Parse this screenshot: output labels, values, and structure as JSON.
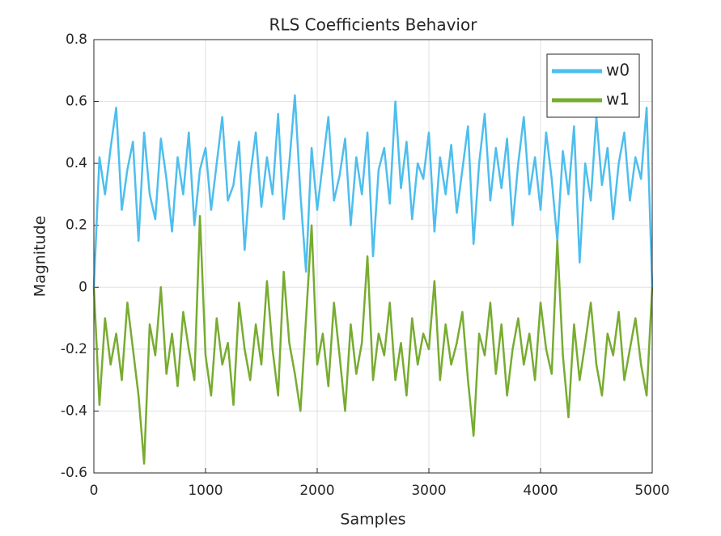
{
  "chart_data": {
    "type": "line",
    "title": "RLS Coefficients Behavior",
    "xlabel": "Samples",
    "ylabel": "Magnitude",
    "x": [
      0,
      50,
      100,
      150,
      200,
      250,
      300,
      350,
      400,
      450,
      500,
      550,
      600,
      650,
      700,
      750,
      800,
      850,
      900,
      950,
      1000,
      1050,
      1100,
      1150,
      1200,
      1250,
      1300,
      1350,
      1400,
      1450,
      1500,
      1550,
      1600,
      1650,
      1700,
      1750,
      1800,
      1850,
      1900,
      1950,
      2000,
      2050,
      2100,
      2150,
      2200,
      2250,
      2300,
      2350,
      2400,
      2450,
      2500,
      2550,
      2600,
      2650,
      2700,
      2750,
      2800,
      2850,
      2900,
      2950,
      3000,
      3050,
      3100,
      3150,
      3200,
      3250,
      3300,
      3350,
      3400,
      3450,
      3500,
      3550,
      3600,
      3650,
      3700,
      3750,
      3800,
      3850,
      3900,
      3950,
      4000,
      4050,
      4100,
      4150,
      4200,
      4250,
      4300,
      4350,
      4400,
      4450,
      4500,
      4550,
      4600,
      4650,
      4700,
      4750,
      4800,
      4850,
      4900,
      4950,
      5000
    ],
    "series": [
      {
        "name": "w0",
        "color": "#4dbeee",
        "values": [
          0,
          0.42,
          0.3,
          0.45,
          0.58,
          0.25,
          0.38,
          0.47,
          0.15,
          0.5,
          0.3,
          0.22,
          0.48,
          0.35,
          0.18,
          0.42,
          0.3,
          0.5,
          0.2,
          0.38,
          0.45,
          0.25,
          0.4,
          0.55,
          0.28,
          0.33,
          0.47,
          0.12,
          0.36,
          0.5,
          0.26,
          0.42,
          0.3,
          0.56,
          0.22,
          0.4,
          0.62,
          0.3,
          0.05,
          0.45,
          0.25,
          0.4,
          0.55,
          0.28,
          0.36,
          0.48,
          0.2,
          0.42,
          0.3,
          0.5,
          0.1,
          0.38,
          0.45,
          0.27,
          0.6,
          0.32,
          0.47,
          0.22,
          0.4,
          0.35,
          0.5,
          0.18,
          0.42,
          0.3,
          0.46,
          0.24,
          0.38,
          0.52,
          0.14,
          0.4,
          0.56,
          0.28,
          0.45,
          0.32,
          0.48,
          0.2,
          0.4,
          0.55,
          0.3,
          0.42,
          0.25,
          0.5,
          0.35,
          0.15,
          0.44,
          0.3,
          0.52,
          0.08,
          0.4,
          0.28,
          0.55,
          0.33,
          0.45,
          0.22,
          0.4,
          0.5,
          0.28,
          0.42,
          0.35,
          0.58,
          0
        ]
      },
      {
        "name": "w1",
        "color": "#77ac30",
        "values": [
          0,
          -0.38,
          -0.1,
          -0.25,
          -0.15,
          -0.3,
          -0.05,
          -0.2,
          -0.35,
          -0.57,
          -0.12,
          -0.22,
          0,
          -0.28,
          -0.15,
          -0.32,
          -0.08,
          -0.2,
          -0.3,
          0.23,
          -0.22,
          -0.35,
          -0.1,
          -0.25,
          -0.18,
          -0.38,
          -0.05,
          -0.2,
          -0.3,
          -0.12,
          -0.25,
          0.02,
          -0.2,
          -0.35,
          0.05,
          -0.18,
          -0.28,
          -0.4,
          -0.1,
          0.2,
          -0.25,
          -0.15,
          -0.32,
          -0.05,
          -0.22,
          -0.4,
          -0.12,
          -0.28,
          -0.18,
          0.1,
          -0.3,
          -0.15,
          -0.22,
          -0.05,
          -0.3,
          -0.18,
          -0.35,
          -0.1,
          -0.25,
          -0.15,
          -0.2,
          0.02,
          -0.3,
          -0.12,
          -0.25,
          -0.18,
          -0.08,
          -0.3,
          -0.48,
          -0.15,
          -0.22,
          -0.05,
          -0.28,
          -0.12,
          -0.35,
          -0.2,
          -0.1,
          -0.25,
          -0.15,
          -0.3,
          -0.05,
          -0.2,
          -0.28,
          0.15,
          -0.22,
          -0.42,
          -0.12,
          -0.3,
          -0.18,
          -0.05,
          -0.25,
          -0.35,
          -0.15,
          -0.22,
          -0.08,
          -0.3,
          -0.2,
          -0.1,
          -0.25,
          -0.35,
          0
        ]
      }
    ],
    "xlim": [
      0,
      5000
    ],
    "xticks": [
      0,
      1000,
      2000,
      3000,
      4000,
      5000
    ],
    "ylim": [
      -0.6,
      0.8
    ],
    "yticks": [
      -0.6,
      -0.4,
      -0.2,
      0,
      0.2,
      0.4,
      0.6,
      0.8
    ],
    "grid": true,
    "legend": "northeast"
  }
}
